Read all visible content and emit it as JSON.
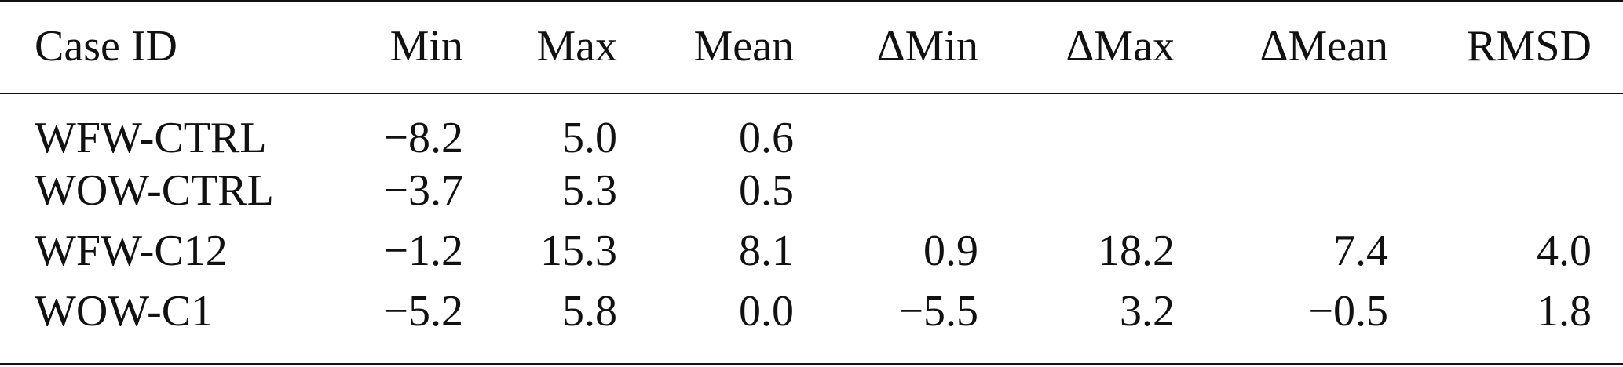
{
  "table": {
    "headers": [
      "Case ID",
      "Min",
      "Max",
      "Mean",
      "ΔMin",
      "ΔMax",
      "ΔMean",
      "RMSD"
    ],
    "rows": [
      [
        "WFW-CTRL",
        "−8.2",
        "5.0",
        "0.6",
        "",
        "",
        "",
        ""
      ],
      [
        "WOW-CTRL",
        "−3.7",
        "5.3",
        "0.5",
        "",
        "",
        "",
        ""
      ],
      [
        "WFW-C12",
        "−1.2",
        "15.3",
        "8.1",
        "0.9",
        "18.2",
        "7.4",
        "4.0"
      ],
      [
        "WOW-C1",
        "−5.2",
        "5.8",
        "0.0",
        "−5.5",
        "3.2",
        "−0.5",
        "1.8"
      ]
    ]
  }
}
